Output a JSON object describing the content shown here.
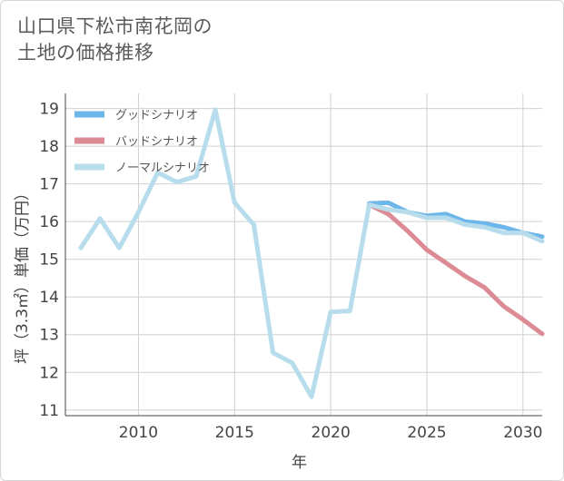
{
  "title": {
    "line1": "山口県下松市南花岡の",
    "line2": "土地の価格推移"
  },
  "chart_data": {
    "type": "line",
    "xlabel": "年",
    "ylabel": "坪（3.3㎡）単価（万円）",
    "xlim": [
      2006.2,
      2031
    ],
    "ylim": [
      10.85,
      19.4
    ],
    "x_ticks": [
      2010,
      2015,
      2020,
      2025,
      2030
    ],
    "y_ticks": [
      11,
      12,
      13,
      14,
      15,
      16,
      17,
      18,
      19
    ],
    "grid": true,
    "legend_position": "top-left",
    "series": [
      {
        "name": "グッドシナリオ",
        "color": "#6cb6ea",
        "points": [
          [
            2022,
            16.48
          ],
          [
            2023,
            16.5
          ],
          [
            2024,
            16.25
          ],
          [
            2025,
            16.15
          ],
          [
            2026,
            16.2
          ],
          [
            2027,
            16.0
          ],
          [
            2028,
            15.95
          ],
          [
            2029,
            15.85
          ],
          [
            2030,
            15.7
          ],
          [
            2031,
            15.6
          ]
        ]
      },
      {
        "name": "バッドシナリオ",
        "color": "#dc8a94",
        "points": [
          [
            2022,
            16.45
          ],
          [
            2023,
            16.2
          ],
          [
            2024,
            15.75
          ],
          [
            2025,
            15.25
          ],
          [
            2026,
            14.9
          ],
          [
            2027,
            14.55
          ],
          [
            2028,
            14.25
          ],
          [
            2029,
            13.75
          ],
          [
            2030,
            13.4
          ],
          [
            2031,
            13.02
          ]
        ]
      },
      {
        "name": "ノーマルシナリオ",
        "color": "#b7dcec",
        "points": [
          [
            2007,
            15.3
          ],
          [
            2008,
            16.08
          ],
          [
            2009,
            15.3
          ],
          [
            2010,
            16.25
          ],
          [
            2011,
            17.3
          ],
          [
            2012,
            17.05
          ],
          [
            2013,
            17.2
          ],
          [
            2014,
            18.97
          ],
          [
            2015,
            16.5
          ],
          [
            2016,
            15.92
          ],
          [
            2017,
            12.52
          ],
          [
            2018,
            12.25
          ],
          [
            2019,
            11.35
          ],
          [
            2020,
            13.6
          ],
          [
            2021,
            13.63
          ],
          [
            2022,
            16.45
          ],
          [
            2023,
            16.32
          ],
          [
            2024,
            16.25
          ],
          [
            2025,
            16.1
          ],
          [
            2026,
            16.1
          ],
          [
            2027,
            15.92
          ],
          [
            2028,
            15.85
          ],
          [
            2029,
            15.7
          ],
          [
            2030,
            15.7
          ],
          [
            2031,
            15.48
          ]
        ]
      }
    ]
  }
}
